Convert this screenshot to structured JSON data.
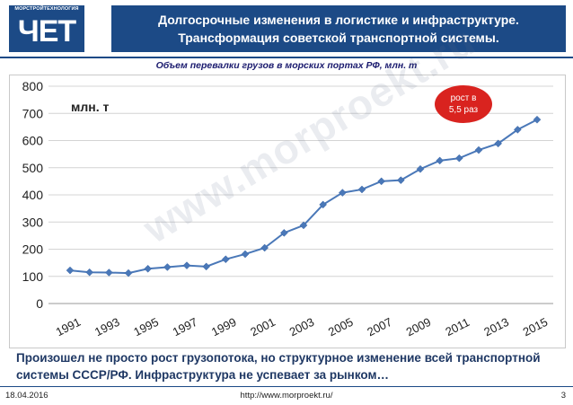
{
  "header": {
    "logo_caption": "МОРСТРОЙТЕХНОЛОГИЯ",
    "logo_mark": "ЧЕТ",
    "title_line1": "Долгосрочные изменения в логистике и инфраструктуре.",
    "title_line2": "Трансформация советской транспортной системы.",
    "brand_color": "#1c4a86"
  },
  "subtitle": "Объем перевалки грузов в морских портах РФ, млн. т",
  "chart_data": {
    "type": "line",
    "unit_label": "млн. т",
    "x": [
      1991,
      1992,
      1993,
      1994,
      1995,
      1996,
      1997,
      1998,
      1999,
      2000,
      2001,
      2002,
      2003,
      2004,
      2005,
      2006,
      2007,
      2008,
      2009,
      2010,
      2011,
      2012,
      2013,
      2014,
      2015
    ],
    "values": [
      122,
      115,
      114,
      112,
      128,
      134,
      140,
      136,
      163,
      182,
      205,
      260,
      288,
      364,
      408,
      420,
      450,
      454,
      495,
      526,
      535,
      565,
      589,
      640,
      677
    ],
    "x_tick_labels": [
      "1991",
      "1993",
      "1995",
      "1997",
      "1999",
      "2001",
      "2003",
      "2005",
      "2007",
      "2009",
      "2011",
      "2013",
      "2015"
    ],
    "y_tick_labels": [
      "0",
      "100",
      "200",
      "300",
      "400",
      "500",
      "600",
      "700",
      "800"
    ],
    "ylim": [
      0,
      800
    ],
    "grid": true,
    "line_color": "#4a78b8",
    "annotation": {
      "line1": "рост в",
      "line2": "5,5 раз",
      "color": "#d9231f"
    }
  },
  "watermark": "www.morproekt.ru",
  "conclusion": "Произошел не просто рост грузопотока, но структурное изменение всей транспортной системы СССР/РФ. Инфраструктура не успевает за рынком…",
  "footer": {
    "date": "18.04.2016",
    "url": "http://www.morproekt.ru/",
    "page": "3"
  }
}
